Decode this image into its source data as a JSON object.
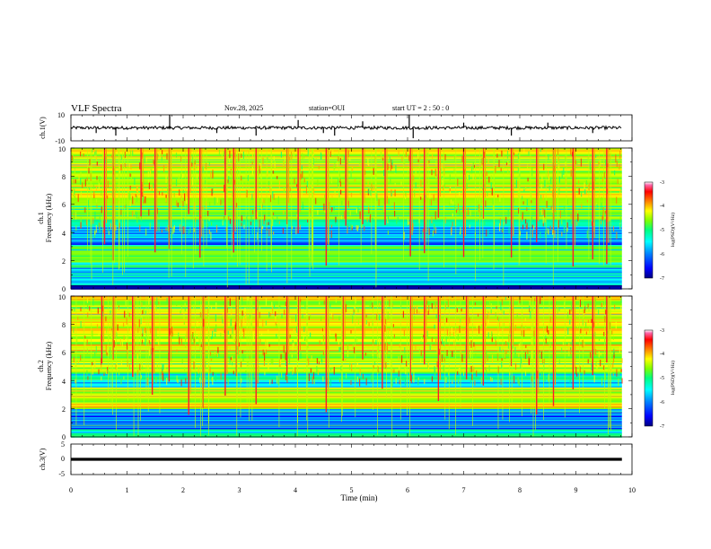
{
  "header": {
    "title": "VLF Spectra",
    "date": "Nov.28, 2025",
    "station": "station=OUI",
    "start": "start  UT =  2 : 50 : 0"
  },
  "colors": {
    "spectrum": [
      "#000080",
      "#0000ff",
      "#0080ff",
      "#00ffff",
      "#00ff80",
      "#80ff00",
      "#ffff00",
      "#ff8000",
      "#ff0000",
      "#ff66aa",
      "#ffffff"
    ]
  },
  "chart_data": [
    {
      "type": "line",
      "name": "ch1-waveform",
      "ylabel": "ch.1(V)",
      "ylim": [
        -10,
        10
      ],
      "yticks": [
        "10",
        "-10"
      ],
      "baseline": 0,
      "noise_amplitude": 1.2,
      "spikes": [
        {
          "t": 0.45,
          "v": -4
        },
        {
          "t": 0.8,
          "v": -6
        },
        {
          "t": 1.76,
          "v": 10
        },
        {
          "t": 2.6,
          "v": -4
        },
        {
          "t": 3.3,
          "v": -6
        },
        {
          "t": 4.05,
          "v": 6
        },
        {
          "t": 4.5,
          "v": -4
        },
        {
          "t": 4.7,
          "v": -6
        },
        {
          "t": 5.2,
          "v": 5
        },
        {
          "t": 6.03,
          "v": 10
        },
        {
          "t": 6.1,
          "v": -8
        },
        {
          "t": 7.0,
          "v": 4
        },
        {
          "t": 7.85,
          "v": -6
        },
        {
          "t": 8.5,
          "v": 4
        },
        {
          "t": 9.3,
          "v": -4
        }
      ]
    },
    {
      "type": "heatmap",
      "name": "ch1-spectrogram",
      "ylabel_channel": "ch.1",
      "ylabel": "Frequency (kHz)",
      "ylim": [
        0,
        10
      ],
      "yticks": [
        "0",
        "2",
        "4",
        "6",
        "8",
        "10"
      ],
      "colorbar": {
        "label": "log(PSD)(V²/Hz)",
        "range": [
          -7,
          -3
        ],
        "ticks": [
          "-3",
          "-4",
          "-5",
          "-6",
          "-7"
        ]
      },
      "bands": [
        {
          "f": [
            0,
            0.3
          ],
          "level": -6.6
        },
        {
          "f": [
            0.3,
            1.5
          ],
          "level": -5.8
        },
        {
          "f": [
            1.5,
            3.0
          ],
          "level": -5.3
        },
        {
          "f": [
            3.0,
            4.5
          ],
          "level": -6.1
        },
        {
          "f": [
            4.5,
            6.0
          ],
          "level": -5.2
        },
        {
          "f": [
            6.0,
            10.0
          ],
          "level": -4.8
        }
      ],
      "burst_times_min": [
        0.6,
        0.75,
        1.25,
        1.5,
        1.75,
        2.1,
        2.3,
        2.75,
        2.9,
        3.3,
        3.85,
        4.05,
        4.55,
        4.9,
        5.2,
        5.6,
        6.05,
        6.3,
        6.55,
        7.0,
        7.35,
        7.85,
        8.3,
        8.6,
        8.95,
        9.3,
        9.55
      ]
    },
    {
      "type": "heatmap",
      "name": "ch2-spectrogram",
      "ylabel_channel": "ch.2",
      "ylabel": "Frequency (kHz)",
      "ylim": [
        0,
        10
      ],
      "yticks": [
        "0",
        "2",
        "4",
        "6",
        "8",
        "10"
      ],
      "colorbar": {
        "label": "log(PSD)(V²/Hz)",
        "range": [
          -7,
          -3
        ],
        "ticks": [
          "-3",
          "-4",
          "-5",
          "-6",
          "-7"
        ]
      },
      "bands": [
        {
          "f": [
            0,
            0.5
          ],
          "level": -5.6
        },
        {
          "f": [
            0.5,
            2.0
          ],
          "level": -6.3
        },
        {
          "f": [
            2.0,
            3.5
          ],
          "level": -4.7
        },
        {
          "f": [
            3.5,
            4.5
          ],
          "level": -5.8
        },
        {
          "f": [
            4.5,
            6.0
          ],
          "level": -5.0
        },
        {
          "f": [
            6.0,
            10.0
          ],
          "level": -4.7
        }
      ],
      "burst_times_min": [
        0.55,
        0.75,
        1.1,
        1.45,
        1.75,
        2.1,
        2.35,
        2.75,
        2.95,
        3.3,
        3.85,
        4.05,
        4.55,
        4.85,
        5.2,
        5.55,
        6.05,
        6.3,
        6.55,
        7.05,
        7.35,
        7.85,
        8.3,
        8.6,
        8.95,
        9.3,
        9.55
      ]
    },
    {
      "type": "line",
      "name": "ch3-waveform",
      "ylabel": "ch.3(V)",
      "ylim": [
        -5,
        5
      ],
      "yticks": [
        "5",
        "0",
        "-5"
      ],
      "value": 0
    }
  ],
  "xaxis": {
    "label": "Time (min)",
    "range": [
      0,
      10
    ],
    "ticks": [
      "0",
      "1",
      "2",
      "3",
      "4",
      "5",
      "6",
      "7",
      "8",
      "9",
      "10"
    ],
    "data_end": 9.82
  }
}
